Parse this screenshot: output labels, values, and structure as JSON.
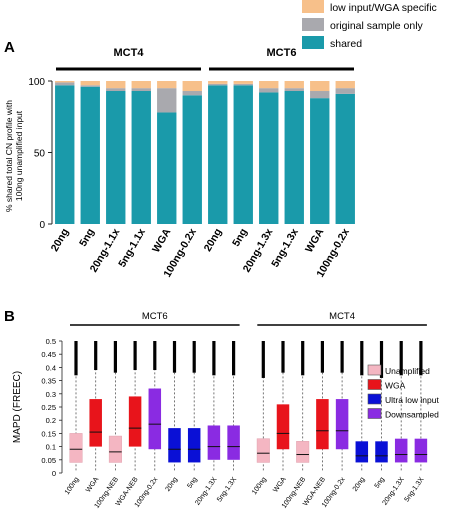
{
  "figure": {
    "panel_a_label": "A",
    "panel_b_label": "B"
  },
  "chart_data": [
    {
      "type": "bar",
      "stacked": true,
      "panel": "A",
      "ylabel": "% shared total CN profile with 100ng unamplified input",
      "ylim": [
        0,
        100
      ],
      "yticks": [
        0,
        50,
        100
      ],
      "groups": [
        {
          "name": "MCT4",
          "categories": [
            "20ng",
            "5ng",
            "20ng-1.1x",
            "5ng-1.1x",
            "WGA",
            "100ng-0.2x"
          ]
        },
        {
          "name": "MCT6",
          "categories": [
            "20ng",
            "5ng",
            "20ng-1.3x",
            "5ng-1.3x",
            "WGA",
            "100ng-0.2x"
          ]
        }
      ],
      "categories": [
        "20ng",
        "5ng",
        "20ng-1.1x",
        "5ng-1.1x",
        "WGA",
        "100ng-0.2x",
        "20ng",
        "5ng",
        "20ng-1.3x",
        "5ng-1.3x",
        "WGA",
        "100ng-0.2x"
      ],
      "series": [
        {
          "name": "shared",
          "color": "#1a9aaa",
          "values": [
            97,
            96,
            93,
            93,
            78,
            90,
            97,
            97,
            92,
            93,
            88,
            91
          ]
        },
        {
          "name": "original sample only",
          "color": "#a9a9ae",
          "values": [
            2,
            1,
            2,
            2,
            17,
            3,
            1,
            1,
            3,
            2,
            5,
            4
          ]
        },
        {
          "name": "low input/WGA specific",
          "color": "#f7c08a",
          "values": [
            1,
            3,
            5,
            5,
            5,
            7,
            2,
            2,
            5,
            5,
            7,
            5
          ]
        }
      ],
      "legend": {
        "placement": "top-right",
        "order": [
          "low input/WGA specific",
          "original sample only",
          "shared"
        ]
      }
    },
    {
      "type": "box",
      "panel": "B",
      "ylabel": "MAPD (FREEC)",
      "ylim": [
        0,
        0.5
      ],
      "yticks": [
        "0",
        "0.05",
        "0.1",
        "0.15",
        "0.2",
        "0.25",
        "0.3",
        "0.35",
        "0.4",
        "0.45",
        "0.5"
      ],
      "groups": [
        {
          "name": "MCT6",
          "categories": [
            "100ng",
            "WGA",
            "100ng-NEB",
            "WGA-NEB",
            "100ng-0.2x",
            "20ng",
            "5ng",
            "20ng-1.3X",
            "5ng-1.3X"
          ]
        },
        {
          "name": "MCT4",
          "categories": [
            "100ng",
            "WGA",
            "100ng-NEB",
            "WGA-NEB",
            "100ng-0.2x",
            "20ng",
            "5ng",
            "20ng-1.3X",
            "5ng-1.3X"
          ]
        }
      ],
      "legend": {
        "placement": "right",
        "entries": [
          {
            "name": "Unamplified",
            "color": "#f4b6c2"
          },
          {
            "name": "WGA",
            "color": "#e8141b"
          },
          {
            "name": "Ultra low input",
            "color": "#0a10d6"
          },
          {
            "name": "Downsampled",
            "color": "#8a2be2"
          }
        ]
      },
      "boxes": [
        {
          "label": "100ng",
          "type": "Unamplified",
          "q1": 0.04,
          "median": 0.09,
          "q3": 0.15,
          "whisker_high": 0.37
        },
        {
          "label": "WGA",
          "type": "WGA",
          "q1": 0.1,
          "median": 0.155,
          "q3": 0.28,
          "whisker_high": 0.39
        },
        {
          "label": "100ng-NEB",
          "type": "Unamplified",
          "q1": 0.04,
          "median": 0.08,
          "q3": 0.14,
          "whisker_high": 0.38
        },
        {
          "label": "WGA-NEB",
          "type": "WGA",
          "q1": 0.1,
          "median": 0.17,
          "q3": 0.29,
          "whisker_high": 0.39
        },
        {
          "label": "100ng-0.2x",
          "type": "Downsampled",
          "q1": 0.09,
          "median": 0.185,
          "q3": 0.32,
          "whisker_high": 0.39
        },
        {
          "label": "20ng",
          "type": "Ultra low input",
          "q1": 0.04,
          "median": 0.09,
          "q3": 0.17,
          "whisker_high": 0.38
        },
        {
          "label": "5ng",
          "type": "Ultra low input",
          "q1": 0.04,
          "median": 0.09,
          "q3": 0.17,
          "whisker_high": 0.38
        },
        {
          "label": "20ng-1.3X",
          "type": "Downsampled",
          "q1": 0.05,
          "median": 0.1,
          "q3": 0.18,
          "whisker_high": 0.37
        },
        {
          "label": "5ng-1.3X",
          "type": "Downsampled",
          "q1": 0.05,
          "median": 0.1,
          "q3": 0.18,
          "whisker_high": 0.37
        },
        {
          "label": "100ng",
          "type": "Unamplified",
          "q1": 0.04,
          "median": 0.075,
          "q3": 0.13,
          "whisker_high": 0.36
        },
        {
          "label": "WGA",
          "type": "WGA",
          "q1": 0.09,
          "median": 0.15,
          "q3": 0.26,
          "whisker_high": 0.38
        },
        {
          "label": "100ng-NEB",
          "type": "Unamplified",
          "q1": 0.04,
          "median": 0.07,
          "q3": 0.12,
          "whisker_high": 0.37
        },
        {
          "label": "WGA-NEB",
          "type": "WGA",
          "q1": 0.09,
          "median": 0.16,
          "q3": 0.28,
          "whisker_high": 0.38
        },
        {
          "label": "100ng-0.2x",
          "type": "Downsampled",
          "q1": 0.09,
          "median": 0.16,
          "q3": 0.28,
          "whisker_high": 0.38
        },
        {
          "label": "20ng",
          "type": "Ultra low input",
          "q1": 0.04,
          "median": 0.065,
          "q3": 0.12,
          "whisker_high": 0.37
        },
        {
          "label": "5ng",
          "type": "Ultra low input",
          "q1": 0.04,
          "median": 0.065,
          "q3": 0.12,
          "whisker_high": 0.36
        },
        {
          "label": "20ng-1.3X",
          "type": "Downsampled",
          "q1": 0.04,
          "median": 0.07,
          "q3": 0.13,
          "whisker_high": 0.37
        },
        {
          "label": "5ng-1.3X",
          "type": "Downsampled",
          "q1": 0.04,
          "median": 0.07,
          "q3": 0.13,
          "whisker_high": 0.37
        }
      ]
    }
  ]
}
